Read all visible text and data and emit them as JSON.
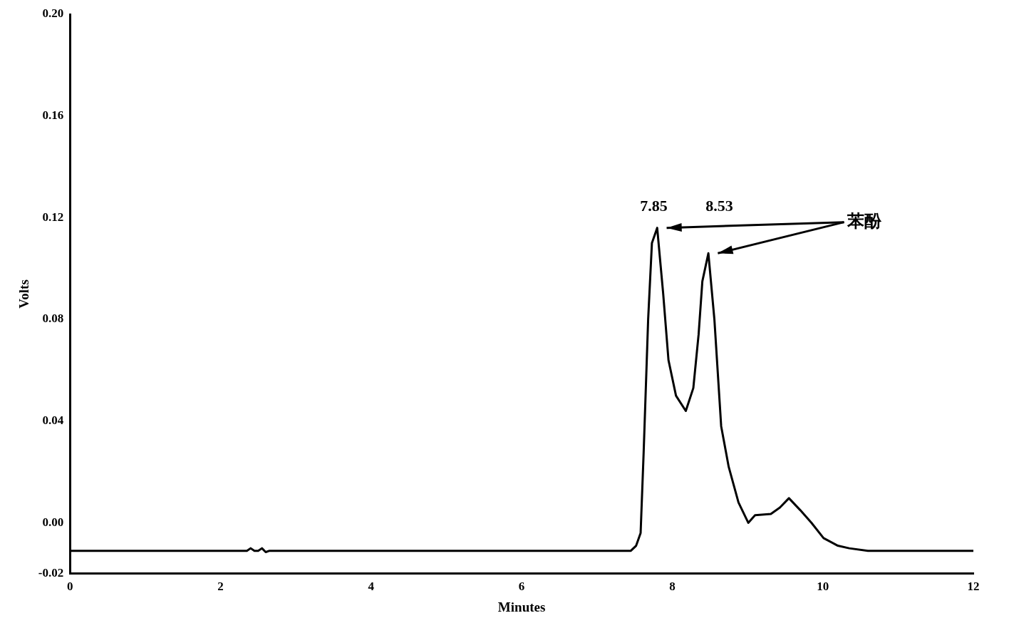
{
  "chart_data": {
    "type": "line",
    "xlabel": "Minutes",
    "ylabel": "Volts",
    "x": [
      0,
      1.5,
      2.35,
      2.4,
      2.45,
      2.5,
      2.55,
      2.6,
      2.65,
      4,
      6,
      7.45,
      7.52,
      7.58,
      7.62,
      7.68,
      7.73,
      7.8,
      7.88,
      7.95,
      8.05,
      8.18,
      8.28,
      8.35,
      8.4,
      8.48,
      8.56,
      8.65,
      8.75,
      8.88,
      9.01,
      9.1,
      9.31,
      9.43,
      9.55,
      9.7,
      9.85,
      10.01,
      10.2,
      10.35,
      10.6,
      12
    ],
    "series": [
      {
        "color": "#000000",
        "values": [
          -0.011,
          -0.011,
          -0.011,
          -0.01,
          -0.011,
          -0.011,
          -0.01,
          -0.0115,
          -0.011,
          -0.011,
          -0.011,
          -0.011,
          -0.009,
          -0.004,
          0.0275,
          0.08,
          0.11,
          0.116,
          0.09,
          0.064,
          0.05,
          0.044,
          0.053,
          0.074,
          0.095,
          0.106,
          0.08,
          0.038,
          0.022,
          0.008,
          0.0,
          0.003,
          0.0035,
          0.006,
          0.0097,
          0.005,
          0.0,
          -0.006,
          -0.009,
          -0.01,
          -0.011,
          -0.011
        ]
      }
    ],
    "xlim": [
      0,
      12
    ],
    "xticks": [
      0,
      2,
      4,
      6,
      8,
      10,
      12
    ],
    "ylim": [
      -0.02,
      0.2
    ],
    "yticks": [
      {
        "value": -0.02,
        "label": "-0.02"
      },
      {
        "value": 0,
        "label": "0.00"
      },
      {
        "value": 0.04,
        "label": "0.04"
      },
      {
        "value": 0.08,
        "label": "0.08"
      },
      {
        "value": 0.12,
        "label": "0.12"
      },
      {
        "value": 0.16,
        "label": "0.16"
      },
      {
        "value": 0.2,
        "label": "0.20"
      }
    ],
    "grid": false,
    "legend": false,
    "marker": "none",
    "line_style": "solid",
    "annotations": [
      {
        "text": "7.85",
        "x": 7.85,
        "y": 0.116
      },
      {
        "text": "8.53",
        "x": 8.53,
        "y": 0.106
      },
      "苯酚"
    ]
  }
}
